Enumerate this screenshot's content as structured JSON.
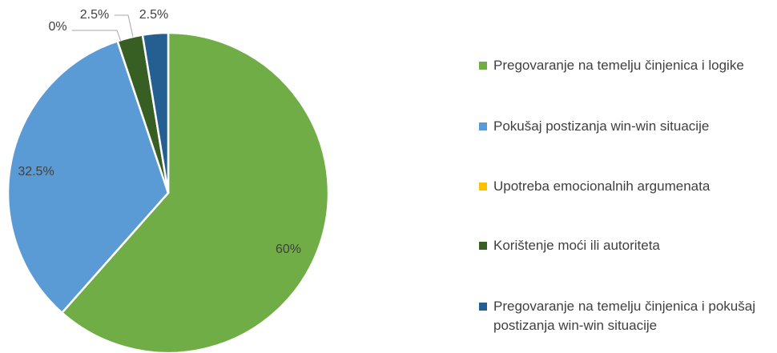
{
  "chart_data": {
    "type": "pie",
    "categories": [
      "Pregovaranje na temelju činjenica i logike",
      "Pokušaj postizanja win-win situacije",
      "Upotreba emocionalnih argumenata",
      "Korištenje moći ili autoriteta",
      "Pregovaranje na temelju činjenica i pokušaj postizanja win-win situacije"
    ],
    "values": [
      60,
      32.5,
      0,
      2.5,
      2.5
    ],
    "value_labels": [
      "60%",
      "32.5%",
      "0%",
      "2.5%",
      "2.5%"
    ],
    "colors": [
      "#70ad47",
      "#5b9bd5",
      "#ffc000",
      "#375f23",
      "#255e91"
    ],
    "legend": "right"
  }
}
